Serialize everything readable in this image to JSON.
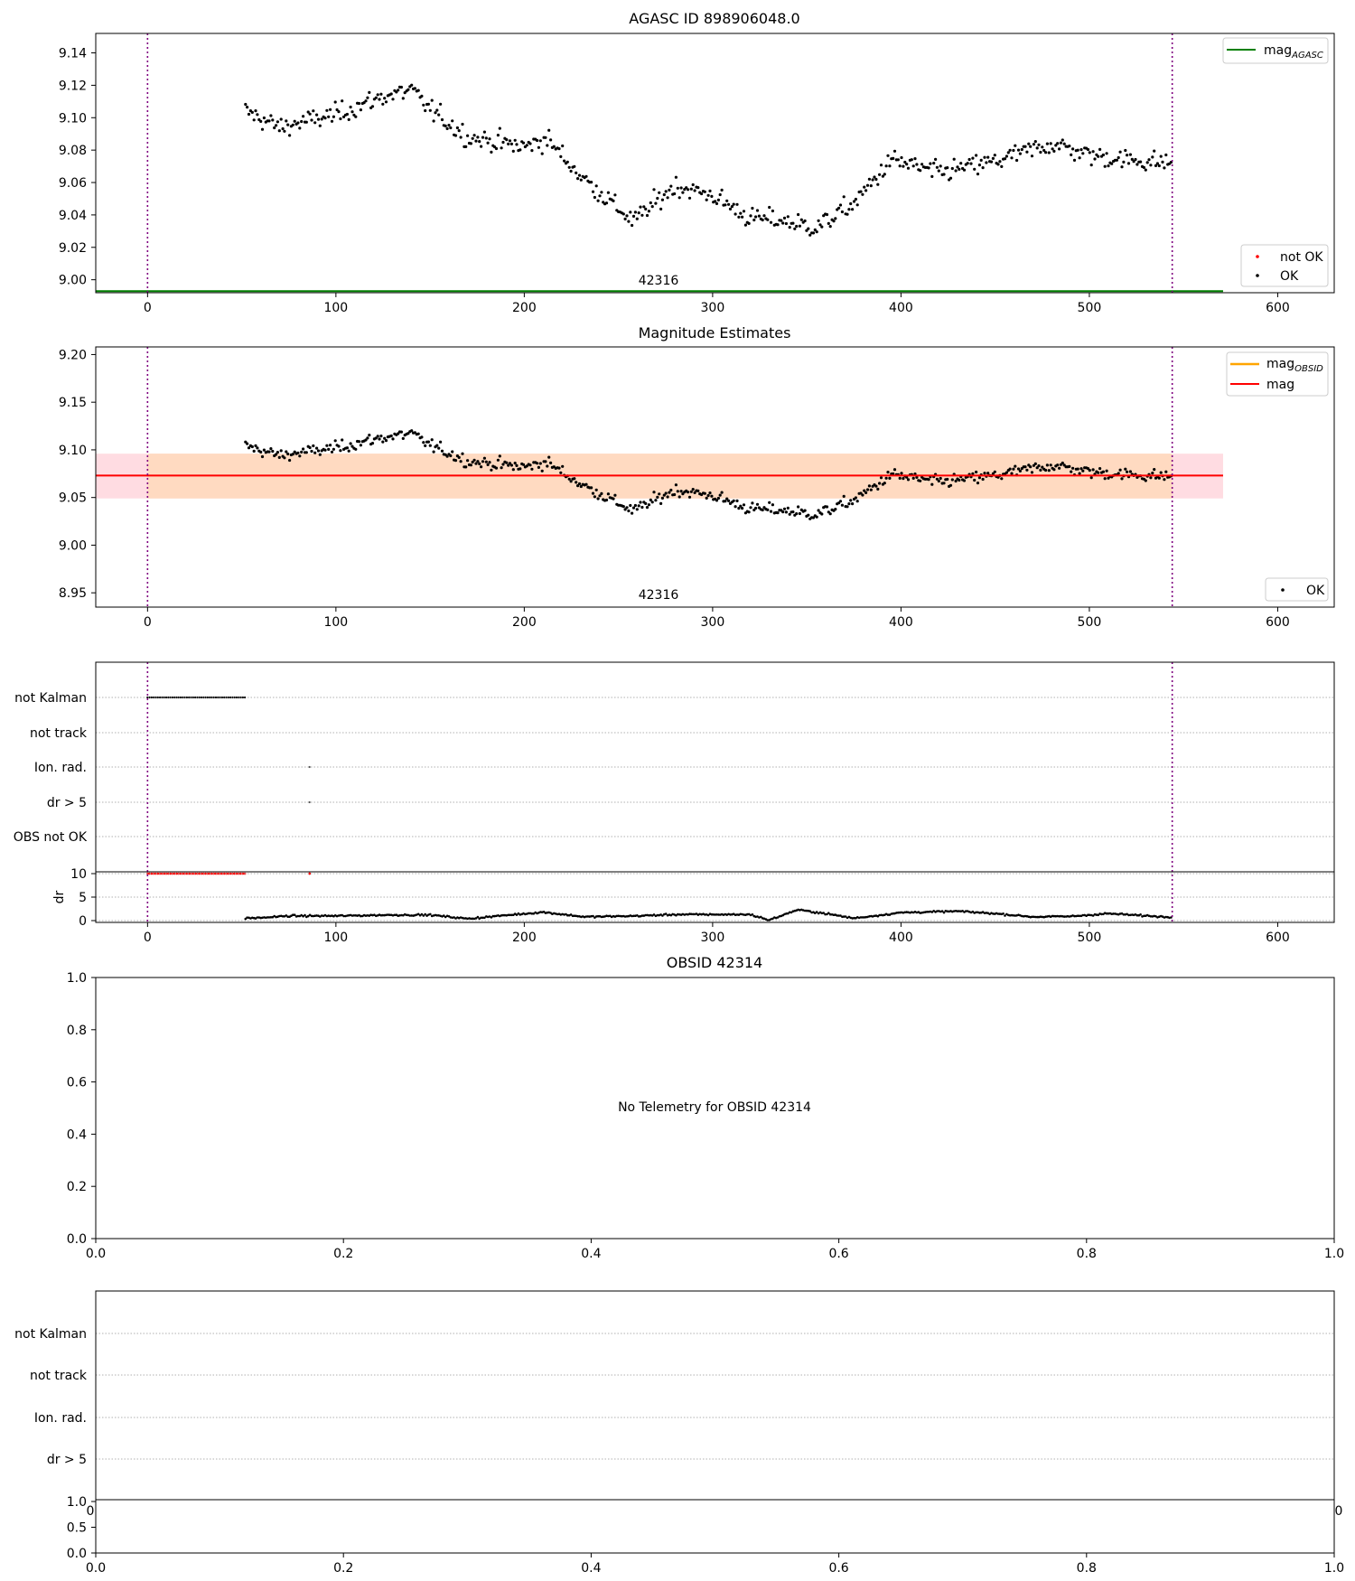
{
  "panel1": {
    "title": "AGASC ID 898906048.0",
    "obsid_label": "42316",
    "xlim": [
      -27.5,
      630
    ],
    "ylim": [
      8.992,
      9.152
    ],
    "xticks": [
      0,
      100,
      200,
      300,
      400,
      500,
      600
    ],
    "xtick_labels": [
      "0",
      "100",
      "200",
      "300",
      "400",
      "500",
      "600"
    ],
    "yticks": [
      9.0,
      9.02,
      9.04,
      9.06,
      9.08,
      9.1,
      9.12,
      9.14
    ],
    "ytick_labels": [
      "9.00",
      "9.02",
      "9.04",
      "9.06",
      "9.08",
      "9.10",
      "9.12",
      "9.14"
    ],
    "legend_top": {
      "label": "mag",
      "subscript": "AGASC",
      "color": "#007f00"
    },
    "legend_bottom": [
      {
        "label": "not OK",
        "color": "#ff0000"
      },
      {
        "label": "OK",
        "color": "#000000"
      }
    ]
  },
  "panel2": {
    "title": "Magnitude Estimates",
    "obsid_label": "42316",
    "xlim": [
      -27.5,
      630
    ],
    "ylim": [
      8.935,
      9.208
    ],
    "xticks": [
      0,
      100,
      200,
      300,
      400,
      500,
      600
    ],
    "xtick_labels": [
      "0",
      "100",
      "200",
      "300",
      "400",
      "500",
      "600"
    ],
    "yticks": [
      8.95,
      9.0,
      9.05,
      9.1,
      9.15,
      9.2
    ],
    "ytick_labels": [
      "8.95",
      "9.00",
      "9.05",
      "9.10",
      "9.15",
      "9.20"
    ],
    "legend_top": [
      {
        "label": "mag",
        "subscript": "OBSID",
        "color": "#ffa500"
      },
      {
        "label": "mag",
        "subscript": "",
        "color": "#ff0000"
      }
    ],
    "legend_bottom": [
      {
        "label": "OK",
        "color": "#000000"
      }
    ],
    "mag_line": 9.073,
    "band_full": {
      "x": [
        -27.5,
        571
      ],
      "y": [
        9.049,
        9.096
      ],
      "color": "#ffc0cb"
    },
    "band_obsid": {
      "x": [
        0,
        544
      ],
      "y": [
        9.049,
        9.096
      ],
      "color": "#ffdab9"
    }
  },
  "panel3": {
    "flag_labels": [
      "not Kalman",
      "not track",
      "Ion. rad.",
      "dr > 5",
      "OBS not OK"
    ],
    "dr_label": "dr",
    "dr_yticks": [
      "0",
      "5",
      "10"
    ],
    "xlim": [
      -27.5,
      630
    ],
    "xticks": [
      0,
      100,
      200,
      300,
      400,
      500,
      600
    ],
    "xtick_labels": [
      "0",
      "100",
      "200",
      "300",
      "400",
      "500",
      "600"
    ]
  },
  "panel4": {
    "title": "OBSID 42314",
    "message": "No Telemetry for OBSID 42314",
    "yticks": [
      "0.0",
      "0.2",
      "0.4",
      "0.6",
      "0.8",
      "1.0"
    ],
    "xticks": [
      "0.0",
      "0.2",
      "0.4",
      "0.6",
      "0.8",
      "1.0"
    ]
  },
  "panel5": {
    "flag_labels": [
      "not Kalman",
      "not track",
      "Ion. rad.",
      "dr > 5"
    ],
    "sub_yticks": [
      "0.0",
      "0.5",
      "1.0"
    ],
    "xticks": [
      "0.0",
      "0.2",
      "0.4",
      "0.6",
      "0.8",
      "1.0"
    ],
    "overlap_x_left": "0",
    "overlap_x_right": "0"
  },
  "obsid_markers": [
    0,
    544
  ],
  "chart_data": [
    {
      "type": "scatter",
      "title": "AGASC ID 898906048.0",
      "series": [
        {
          "name": "OK",
          "color": "#000000"
        },
        {
          "name": "not OK",
          "color": "#ff0000",
          "x": [],
          "y": []
        },
        {
          "name": "mag_AGASC",
          "type": "line",
          "color": "#007f00",
          "y": 8.993
        }
      ],
      "ylim": [
        8.992,
        9.152
      ],
      "trend": {
        "x": [
          52,
          70,
          100,
          125,
          140,
          150,
          170,
          200,
          212,
          230,
          258,
          280,
          300,
          320,
          335,
          355,
          375,
          395,
          420,
          450,
          480,
          500,
          520,
          544
        ],
        "y": [
          9.104,
          9.094,
          9.102,
          9.113,
          9.117,
          9.105,
          9.088,
          9.082,
          9.087,
          9.064,
          9.036,
          9.058,
          9.052,
          9.038,
          9.037,
          9.032,
          9.047,
          9.074,
          9.066,
          9.073,
          9.084,
          9.077,
          9.074,
          9.072
        ]
      },
      "grid": false,
      "legend": "top-right / bottom-right"
    },
    {
      "type": "scatter",
      "title": "Magnitude Estimates",
      "series": [
        {
          "name": "OK",
          "color": "#000000"
        },
        {
          "name": "mag_OBSID",
          "type": "line",
          "color": "#ffa500"
        },
        {
          "name": "mag",
          "type": "line",
          "color": "#ff0000",
          "y": 9.073
        }
      ],
      "ylim": [
        8.935,
        9.208
      ]
    },
    {
      "type": "scatter",
      "title": "",
      "flags": {
        "not Kalman": {
          "x_range": [
            0,
            52
          ]
        },
        "Ion. rad.": {
          "x": [
            86
          ]
        },
        "dr > 5": {
          "x": [
            86
          ]
        },
        "not track": {
          "x": []
        },
        "OBS not OK": {
          "x": []
        }
      },
      "dr": {
        "ylim": [
          0,
          10
        ],
        "profile": {
          "x": [
            52,
            60,
            75,
            100,
            130,
            150,
            170,
            195,
            210,
            232,
            260,
            280,
            320,
            330,
            345,
            360,
            375,
            400,
            430,
            450,
            470,
            490,
            510,
            540
          ],
          "y": [
            0.5,
            0.6,
            1.0,
            1.0,
            1.2,
            1.2,
            0.4,
            1.3,
            1.8,
            0.8,
            1.0,
            1.3,
            1.3,
            0.1,
            2.3,
            1.5,
            0.5,
            1.7,
            2.0,
            1.5,
            0.8,
            0.9,
            1.5,
            0.8
          ]
        }
      }
    },
    {
      "type": "scatter",
      "title": "OBSID 42314",
      "series": [],
      "xlim": [
        0,
        1
      ],
      "ylim": [
        0,
        1
      ]
    }
  ]
}
